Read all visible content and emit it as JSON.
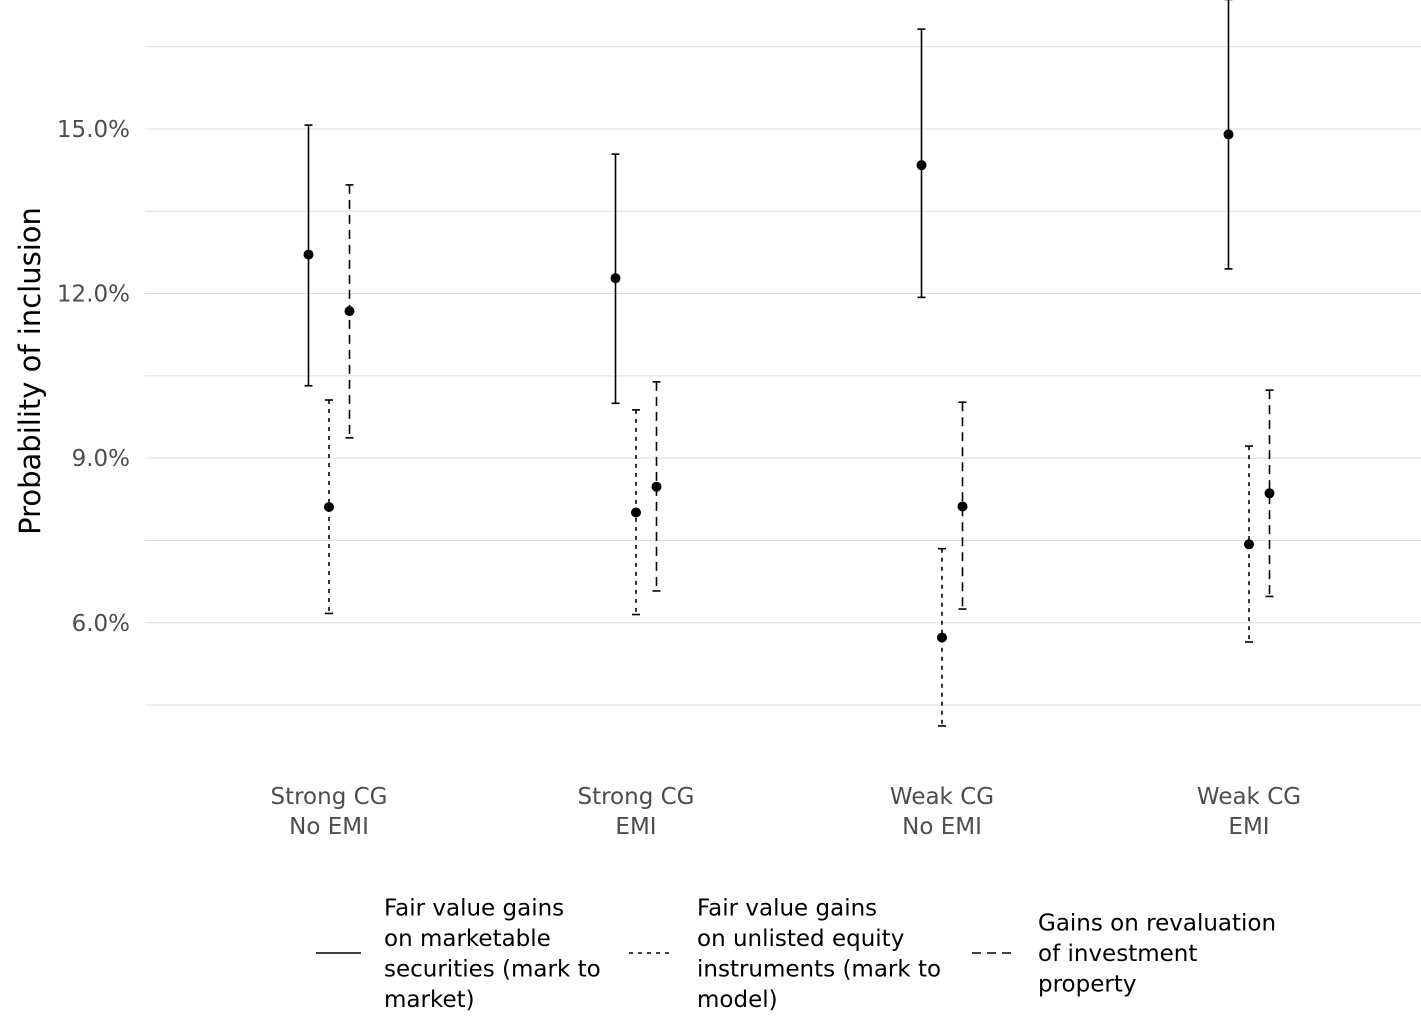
{
  "chart_data": {
    "type": "errorbar",
    "ylabel": "Probability of inclusion",
    "y_ticks": [
      {
        "value": 0.06,
        "label": "6.0%"
      },
      {
        "value": 0.09,
        "label": "9.0%"
      },
      {
        "value": 0.12,
        "label": "12.0%"
      },
      {
        "value": 0.15,
        "label": "15.0%"
      }
    ],
    "ylim": [
      0.039,
      0.1735
    ],
    "grid": true,
    "categories": [
      {
        "line1": "Strong CG",
        "line2": "No EMI"
      },
      {
        "line1": "Strong CG",
        "line2": "EMI"
      },
      {
        "line1": "Weak CG",
        "line2": "No EMI"
      },
      {
        "line1": "Weak CG",
        "line2": "EMI"
      }
    ],
    "legend_position": "bottom",
    "series": [
      {
        "name_lines": [
          "Fair value gains",
          "on marketable",
          "securities (mark to",
          "market)"
        ],
        "line_style": "solid",
        "estimate": [
          0.1271,
          0.1228,
          0.1434,
          0.149
        ],
        "lower": [
          0.1032,
          0.1,
          0.1193,
          0.1245
        ],
        "upper": [
          0.1507,
          0.1454,
          0.1682,
          0.1736
        ]
      },
      {
        "name_lines": [
          "Fair value gains",
          "on unlisted equity",
          "instruments (mark to",
          "model)"
        ],
        "line_style": "dotted",
        "estimate": [
          0.0811,
          0.0801,
          0.0573,
          0.0743
        ],
        "lower": [
          0.0617,
          0.0615,
          0.0412,
          0.0565
        ],
        "upper": [
          0.1006,
          0.0988,
          0.0735,
          0.0922
        ]
      },
      {
        "name_lines": [
          "Gains on revaluation",
          "of investment",
          "property"
        ],
        "line_style": "dashed",
        "estimate": [
          0.1168,
          0.0848,
          0.0812,
          0.0836
        ],
        "lower": [
          0.0937,
          0.0658,
          0.0625,
          0.0648
        ],
        "upper": [
          0.1398,
          0.1039,
          0.1002,
          0.1024
        ]
      }
    ]
  }
}
